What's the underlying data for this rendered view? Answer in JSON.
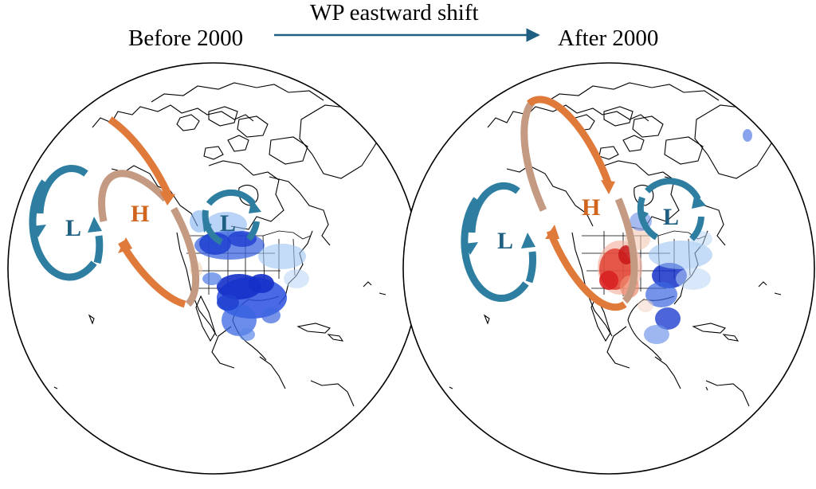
{
  "header": {
    "shift_label": "WP eastward shift",
    "before_label": "Before 2000",
    "after_label": "After 2000"
  },
  "colors": {
    "low_cell": "#2e7ea1",
    "high_cell": "#e07a3a",
    "high_cell_fade": "#c49a82",
    "shift_arrow": "#1f5f82",
    "wet_anomaly": "#1f3fd0",
    "dry_anomaly": "#e02020",
    "coastline": "#000000"
  },
  "maps": [
    {
      "id": "before",
      "cells": [
        {
          "type": "low",
          "label": "L"
        },
        {
          "type": "high",
          "label": "H"
        },
        {
          "type": "low",
          "label": "L"
        }
      ],
      "anomaly": "wet-widespread"
    },
    {
      "id": "after",
      "cells": [
        {
          "type": "low",
          "label": "L"
        },
        {
          "type": "high",
          "label": "H"
        },
        {
          "type": "low",
          "label": "L"
        }
      ],
      "anomaly": "dry-west-wet-east"
    }
  ]
}
